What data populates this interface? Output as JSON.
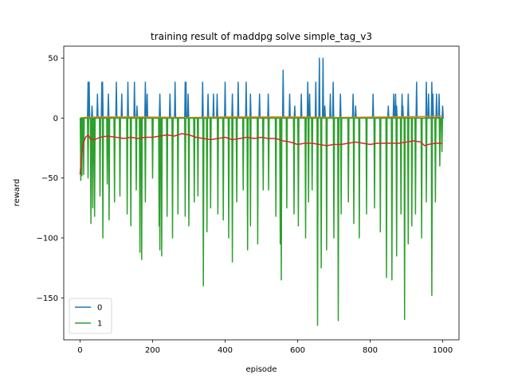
{
  "chart_data": {
    "type": "line",
    "title": "training result of maddpg solve simple_tag_v3",
    "xlabel": "episode",
    "ylabel": "reward",
    "xlim": [
      -45,
      1045
    ],
    "ylim": [
      -185,
      60
    ],
    "xticks": [
      0,
      200,
      400,
      600,
      800,
      1000
    ],
    "yticks": [
      50,
      0,
      -50,
      -100,
      -150
    ],
    "grid": false,
    "legend": {
      "placement": "lower-left",
      "entries": [
        {
          "label": "0",
          "color": "#1f77b4"
        },
        {
          "label": "1",
          "color": "#2ca02c"
        }
      ]
    },
    "series": [
      {
        "name": "0",
        "color": "#1f77b4",
        "baseline": 0,
        "spikes": [
          [
            22,
            30
          ],
          [
            25,
            30
          ],
          [
            33,
            10
          ],
          [
            48,
            20
          ],
          [
            60,
            30
          ],
          [
            62,
            30
          ],
          [
            78,
            20
          ],
          [
            100,
            30
          ],
          [
            115,
            20
          ],
          [
            132,
            30
          ],
          [
            150,
            30
          ],
          [
            157,
            10
          ],
          [
            180,
            30
          ],
          [
            185,
            20
          ],
          [
            220,
            20
          ],
          [
            248,
            20
          ],
          [
            262,
            30
          ],
          [
            290,
            30
          ],
          [
            292,
            30
          ],
          [
            298,
            20
          ],
          [
            338,
            30
          ],
          [
            353,
            20
          ],
          [
            368,
            20
          ],
          [
            378,
            20
          ],
          [
            400,
            30
          ],
          [
            420,
            20
          ],
          [
            436,
            30
          ],
          [
            458,
            30
          ],
          [
            470,
            20
          ],
          [
            495,
            20
          ],
          [
            519,
            20
          ],
          [
            560,
            40
          ],
          [
            578,
            20
          ],
          [
            592,
            10
          ],
          [
            610,
            20
          ],
          [
            628,
            30
          ],
          [
            633,
            20
          ],
          [
            650,
            30
          ],
          [
            660,
            50
          ],
          [
            670,
            50
          ],
          [
            675,
            10
          ],
          [
            690,
            20
          ],
          [
            698,
            30
          ],
          [
            718,
            20
          ],
          [
            753,
            20
          ],
          [
            760,
            10
          ],
          [
            808,
            20
          ],
          [
            850,
            10
          ],
          [
            865,
            20
          ],
          [
            870,
            20
          ],
          [
            873,
            10
          ],
          [
            888,
            20
          ],
          [
            890,
            10
          ],
          [
            905,
            20
          ],
          [
            928,
            30
          ],
          [
            955,
            30
          ],
          [
            961,
            20
          ],
          [
            970,
            30
          ],
          [
            973,
            20
          ],
          [
            983,
            20
          ],
          [
            990,
            20
          ],
          [
            1000,
            10
          ]
        ]
      },
      {
        "name": "",
        "color": "#ff7f0e",
        "points": [
          [
            0,
            0
          ],
          [
            10,
            0.5
          ],
          [
            50,
            1
          ],
          [
            150,
            1
          ],
          [
            300,
            0.5
          ],
          [
            400,
            1
          ],
          [
            600,
            1
          ],
          [
            700,
            0.5
          ],
          [
            850,
            1
          ],
          [
            1000,
            1.5
          ]
        ]
      },
      {
        "name": "1",
        "color": "#2ca02c",
        "baseline": 0,
        "dips": [
          [
            2,
            -52
          ],
          [
            5,
            -48
          ],
          [
            10,
            -47
          ],
          [
            22,
            -50
          ],
          [
            30,
            -88
          ],
          [
            35,
            -75
          ],
          [
            40,
            -82
          ],
          [
            55,
            -65
          ],
          [
            63,
            -100
          ],
          [
            75,
            -55
          ],
          [
            80,
            -85
          ],
          [
            95,
            -70
          ],
          [
            110,
            -65
          ],
          [
            130,
            -80
          ],
          [
            140,
            -90
          ],
          [
            155,
            -60
          ],
          [
            165,
            -112
          ],
          [
            170,
            -118
          ],
          [
            180,
            -70
          ],
          [
            200,
            -50
          ],
          [
            218,
            -90
          ],
          [
            220,
            -110
          ],
          [
            225,
            -115
          ],
          [
            240,
            -82
          ],
          [
            255,
            -100
          ],
          [
            270,
            -80
          ],
          [
            290,
            -82
          ],
          [
            300,
            -90
          ],
          [
            315,
            -70
          ],
          [
            325,
            -65
          ],
          [
            340,
            -140
          ],
          [
            350,
            -95
          ],
          [
            360,
            -75
          ],
          [
            380,
            -80
          ],
          [
            395,
            -85
          ],
          [
            410,
            -100
          ],
          [
            420,
            -120
          ],
          [
            432,
            -70
          ],
          [
            450,
            -60
          ],
          [
            462,
            -110
          ],
          [
            470,
            -90
          ],
          [
            490,
            -105
          ],
          [
            505,
            -60
          ],
          [
            520,
            -60
          ],
          [
            540,
            -82
          ],
          [
            552,
            -105
          ],
          [
            555,
            -135
          ],
          [
            570,
            -75
          ],
          [
            590,
            -80
          ],
          [
            602,
            -90
          ],
          [
            622,
            -100
          ],
          [
            630,
            -70
          ],
          [
            640,
            -60
          ],
          [
            655,
            -173
          ],
          [
            665,
            -125
          ],
          [
            680,
            -110
          ],
          [
            700,
            -100
          ],
          [
            712,
            -169
          ],
          [
            720,
            -80
          ],
          [
            740,
            -70
          ],
          [
            755,
            -88
          ],
          [
            770,
            -100
          ],
          [
            790,
            -80
          ],
          [
            812,
            -75
          ],
          [
            828,
            -95
          ],
          [
            845,
            -133
          ],
          [
            860,
            -135
          ],
          [
            873,
            -115
          ],
          [
            885,
            -80
          ],
          [
            895,
            -168
          ],
          [
            905,
            -105
          ],
          [
            915,
            -90
          ],
          [
            925,
            -80
          ],
          [
            942,
            -100
          ],
          [
            955,
            -70
          ],
          [
            970,
            -148
          ],
          [
            980,
            -70
          ],
          [
            992,
            -40
          ],
          [
            998,
            -28
          ]
        ]
      },
      {
        "name": "",
        "color": "#d62728",
        "points": [
          [
            0,
            -47
          ],
          [
            3,
            -35
          ],
          [
            8,
            -22
          ],
          [
            15,
            -16
          ],
          [
            22,
            -14
          ],
          [
            30,
            -18
          ],
          [
            40,
            -18
          ],
          [
            55,
            -16
          ],
          [
            75,
            -15
          ],
          [
            100,
            -16
          ],
          [
            120,
            -17
          ],
          [
            140,
            -16
          ],
          [
            160,
            -17
          ],
          [
            180,
            -16
          ],
          [
            200,
            -16
          ],
          [
            220,
            -15
          ],
          [
            240,
            -14
          ],
          [
            260,
            -15
          ],
          [
            280,
            -13
          ],
          [
            300,
            -14
          ],
          [
            320,
            -16
          ],
          [
            340,
            -17
          ],
          [
            360,
            -18
          ],
          [
            380,
            -17
          ],
          [
            400,
            -16
          ],
          [
            420,
            -18
          ],
          [
            440,
            -17
          ],
          [
            460,
            -16
          ],
          [
            480,
            -17
          ],
          [
            500,
            -16
          ],
          [
            520,
            -17
          ],
          [
            540,
            -17
          ],
          [
            560,
            -19
          ],
          [
            580,
            -20
          ],
          [
            600,
            -22
          ],
          [
            620,
            -21
          ],
          [
            640,
            -21
          ],
          [
            660,
            -22
          ],
          [
            680,
            -23
          ],
          [
            700,
            -22
          ],
          [
            720,
            -22
          ],
          [
            740,
            -21
          ],
          [
            760,
            -20
          ],
          [
            780,
            -21
          ],
          [
            800,
            -22
          ],
          [
            820,
            -21
          ],
          [
            840,
            -21
          ],
          [
            860,
            -21
          ],
          [
            880,
            -21
          ],
          [
            900,
            -20
          ],
          [
            920,
            -19
          ],
          [
            940,
            -20
          ],
          [
            950,
            -23
          ],
          [
            960,
            -22
          ],
          [
            980,
            -21
          ],
          [
            1000,
            -21
          ]
        ]
      }
    ]
  }
}
